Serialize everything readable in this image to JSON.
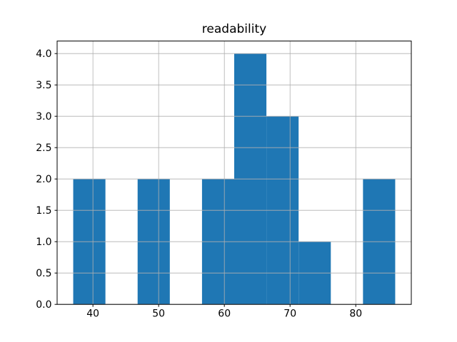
{
  "chart_data": {
    "type": "bar",
    "subtype": "histogram",
    "title": "readability",
    "bin_edges": [
      37.0,
      41.9,
      46.8,
      51.7,
      56.6,
      61.5,
      66.4,
      71.3,
      76.2,
      81.1,
      86.0
    ],
    "counts": [
      2,
      0,
      2,
      0,
      2,
      4,
      3,
      1,
      0,
      2
    ],
    "xlim": [
      34.55,
      88.45
    ],
    "ylim": [
      0,
      4.2
    ],
    "xticks": [
      40,
      50,
      60,
      70,
      80
    ],
    "xtick_labels": [
      "40",
      "50",
      "60",
      "70",
      "80"
    ],
    "yticks": [
      0.0,
      0.5,
      1.0,
      1.5,
      2.0,
      2.5,
      3.0,
      3.5,
      4.0
    ],
    "ytick_labels": [
      "0.0",
      "0.5",
      "1.0",
      "1.5",
      "2.0",
      "2.5",
      "3.0",
      "3.5",
      "4.0"
    ],
    "xlabel": "",
    "ylabel": "",
    "grid": true,
    "grid_above_bars": true,
    "legend": "none",
    "bar_color": "#1f77b4",
    "grid_color": "#b0b0b0",
    "frame_color": "#000000",
    "text_color": "#000000",
    "background_color": "#ffffff"
  }
}
